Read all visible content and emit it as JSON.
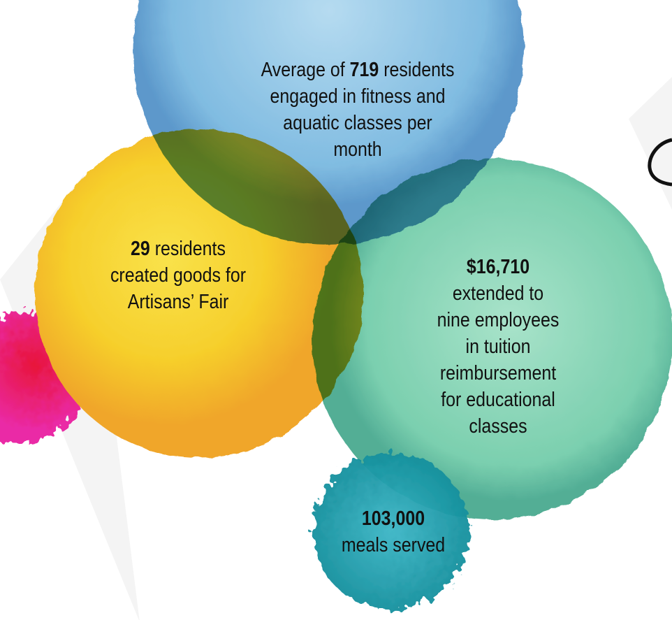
{
  "callouts": [
    {
      "before": "Average of",
      "number": "719",
      "after": "residents",
      "lines": [
        "engaged in fitness and",
        "aquatic classes per",
        "month"
      ]
    },
    {
      "number": "29",
      "after": "residents",
      "lines": [
        "created goods for",
        "Artisans’ Fair"
      ]
    },
    {
      "number": "$16,710",
      "lines": [
        "extended to",
        "nine employees",
        "in tuition",
        "reimbursement",
        "for educational",
        "classes"
      ]
    },
    {
      "number": "103,000",
      "lines": [
        "meals served"
      ]
    }
  ]
}
